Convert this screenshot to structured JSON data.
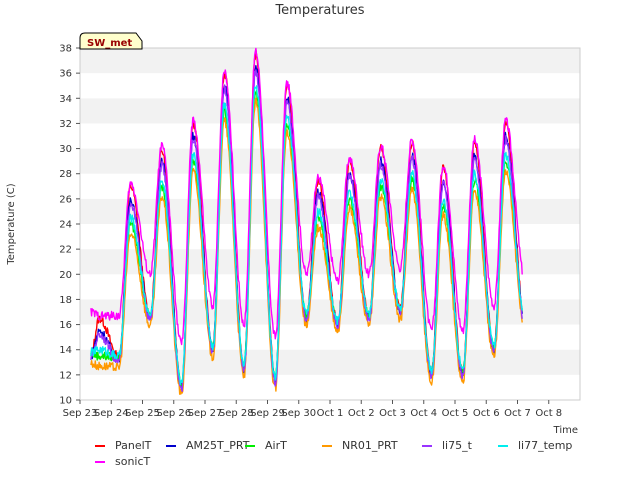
{
  "chart_data": {
    "type": "line",
    "title": "Temperatures",
    "xlabel": "Time",
    "ylabel": "Temperature (C)",
    "ylim": [
      10,
      38
    ],
    "yticks": [
      10,
      12,
      14,
      16,
      18,
      20,
      22,
      24,
      26,
      28,
      30,
      32,
      34,
      36,
      38
    ],
    "xlim": [
      0,
      16
    ],
    "x_tick_labels": [
      "Sep 23",
      "Sep 24",
      "Sep 25",
      "Sep 26",
      "Sep 27",
      "Sep 28",
      "Sep 29",
      "Sep 30",
      "Oct 1",
      "Oct 2",
      "Oct 3",
      "Oct 4",
      "Oct 5",
      "Oct 6",
      "Oct 7",
      "Oct 8"
    ],
    "site_label": "SW_met",
    "grid": "horizontal bands",
    "legend_position": "bottom",
    "x_unit": "days since Sep 23",
    "daily_pattern": {
      "day": [
        0.35,
        1,
        2,
        3,
        4,
        5,
        6,
        7,
        8,
        9,
        10,
        11,
        12,
        13,
        14
      ],
      "min": [
        13.5,
        13.2,
        16.5,
        11.0,
        14.0,
        12.5,
        11.5,
        16.5,
        16.0,
        16.5,
        17.0,
        12.0,
        12.0,
        14.0,
        16.0
      ],
      "max": [
        15.5,
        26.0,
        29.0,
        31.0,
        35.0,
        36.5,
        34.0,
        26.5,
        28.0,
        29.0,
        29.5,
        27.5,
        29.5,
        31.0,
        33.0
      ],
      "peak_hour_frac": 0.62,
      "min_hour_frac": 0.25,
      "end_day": 14.15
    },
    "series": [
      {
        "name": "PanelT",
        "color": "#ff0000",
        "max_offset": 1.0,
        "min_offset": 0.2
      },
      {
        "name": "AM25T_PRT",
        "color": "#0000cc",
        "max_offset": 0.0,
        "min_offset": 0.0
      },
      {
        "name": "AirT",
        "color": "#00ee00",
        "max_offset": -2.0,
        "min_offset": 0.2
      },
      {
        "name": "NR01_PRT",
        "color": "#ff9900",
        "max_offset": -2.8,
        "min_offset": -0.6
      },
      {
        "name": "li75_t",
        "color": "#9933ff",
        "max_offset": -0.3,
        "min_offset": -0.1
      },
      {
        "name": "li77_temp",
        "color": "#00eeee",
        "max_offset": -1.5,
        "min_offset": 0.3
      },
      {
        "name": "sonicT",
        "color": "#ff00ff",
        "max_offset": 1.2,
        "min_offset": 3.5
      }
    ],
    "legend": {
      "row1": [
        "PanelT",
        "AM25T_PRT",
        "AirT",
        "NR01_PRT",
        "li75_t",
        "li77_temp"
      ],
      "row2": [
        "sonicT"
      ]
    }
  }
}
